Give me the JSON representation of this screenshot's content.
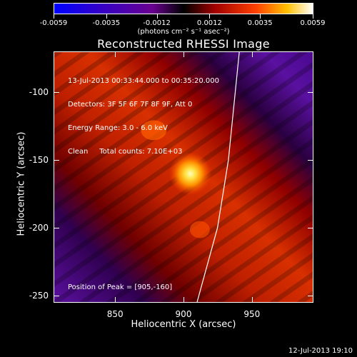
{
  "colorbar": {
    "ticks": [
      "-0.0059",
      "-0.0035",
      "-0.0012",
      "0.0012",
      "0.0035",
      "0.0059"
    ],
    "tick_values": [
      -0.0059,
      -0.0035,
      -0.0012,
      0.0012,
      0.0035,
      0.0059
    ],
    "units": "(photons cm⁻² s⁻¹ asec⁻²)",
    "colors": [
      "#0000ff",
      "#3a00c0",
      "#700090",
      "#000000",
      "#a00000",
      "#ff4000",
      "#ffc000",
      "#ffffff"
    ]
  },
  "chart_data": {
    "type": "heatmap",
    "title": "Reconstructed RHESSI Image",
    "xlabel": "Heliocentric X (arcsec)",
    "ylabel": "Heliocentric Y (arcsec)",
    "xlim": [
      805,
      995
    ],
    "ylim": [
      -255,
      -70
    ],
    "xticks": [
      850,
      900,
      950
    ],
    "yticks": [
      -100,
      -150,
      -200,
      -250
    ],
    "info_lines": [
      "13-Jul-2013 00:33:44.000 to 00:35:20.000",
      "Detectors: 3F 5F 6F 7F 8F 9F, Att 0",
      "Energy Range: 3.0 - 6.0 keV",
      "Clean     Total counts: 7.10E+03"
    ],
    "peak_label": "Position of Peak = [905,-160]",
    "peak": {
      "x": 905,
      "y": -160
    },
    "limb_curve": [
      [
        910,
        -255
      ],
      [
        925,
        -200
      ],
      [
        933,
        -150
      ],
      [
        938,
        -100
      ],
      [
        941,
        -70
      ]
    ]
  },
  "timestamp": "12-Jul-2013 19:10"
}
